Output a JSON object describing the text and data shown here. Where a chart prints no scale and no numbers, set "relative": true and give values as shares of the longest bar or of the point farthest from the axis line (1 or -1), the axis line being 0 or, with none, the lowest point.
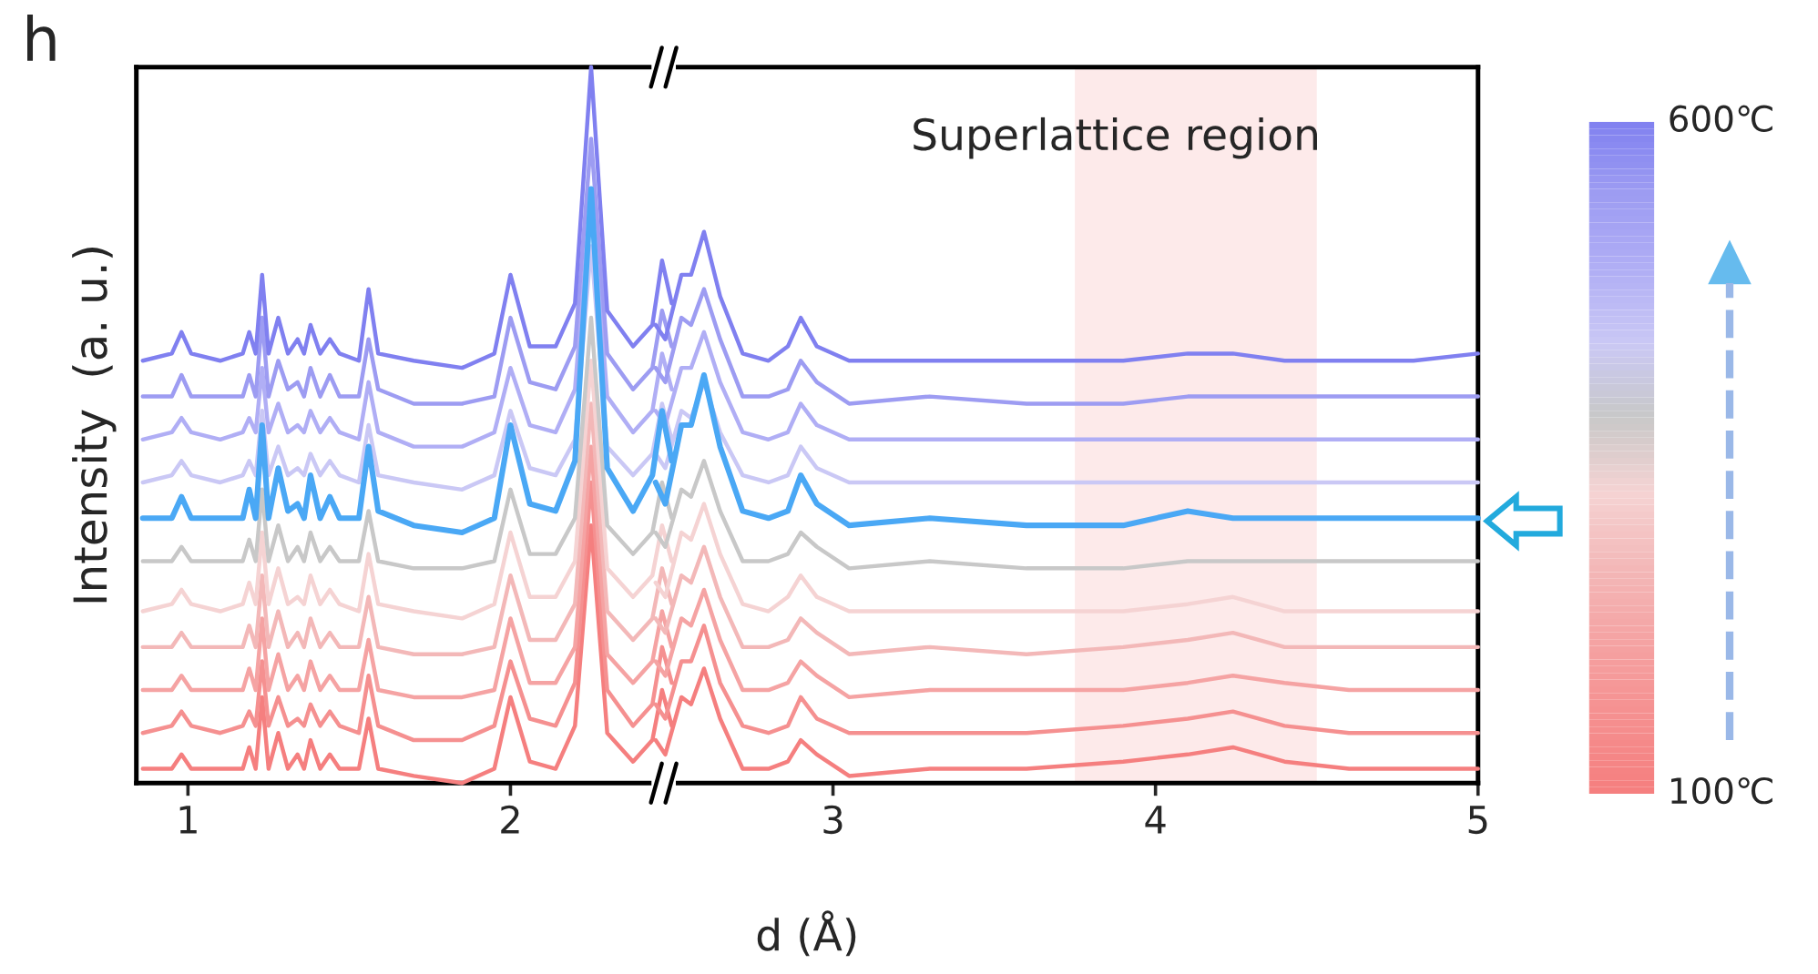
{
  "chart_data": {
    "type": "line",
    "title": "h",
    "xlabel": "d (Å)",
    "ylabel": "Intensity  (a. u.)",
    "relative": true,
    "tick_labels": "x",
    "grid": false,
    "legend": false,
    "line_style": "solid",
    "marker": "none",
    "xlim": [
      0.84,
      5.0
    ],
    "xticks": [
      1,
      2,
      3,
      4,
      5
    ],
    "annotations": [
      "Superlattice region"
    ],
    "bands": [
      {
        "axis": "x",
        "from": 3.75,
        "to": 4.5,
        "color": "#fdeaea"
      }
    ],
    "clim": [
      100,
      600
    ],
    "cticks": [
      {
        "value": 100,
        "label": "100℃"
      },
      {
        "value": 600,
        "label": "600℃"
      }
    ],
    "x": [
      0.86,
      0.95,
      0.98,
      1.01,
      1.1,
      1.17,
      1.19,
      1.21,
      1.23,
      1.25,
      1.28,
      1.31,
      1.34,
      1.36,
      1.38,
      1.41,
      1.44,
      1.47,
      1.53,
      1.56,
      1.59,
      1.7,
      1.85,
      1.95,
      2.0,
      2.06,
      2.14,
      2.2,
      2.25,
      2.3,
      2.38,
      2.44,
      2.47,
      2.5,
      2.45,
      2.48,
      2.53,
      2.56,
      2.6,
      2.65,
      2.72,
      2.8,
      2.86,
      2.9,
      2.95,
      3.05,
      3.3,
      3.6,
      3.9,
      4.1,
      4.24,
      4.4,
      4.6,
      4.8,
      5.0
    ],
    "series": [
      {
        "color": "#f57f7f",
        "values": [
          0.02,
          0.02,
          0.04,
          0.02,
          0.02,
          0.02,
          0.05,
          0.02,
          0.12,
          0.02,
          0.07,
          0.02,
          0.04,
          0.02,
          0.06,
          0.02,
          0.04,
          0.02,
          0.02,
          0.09,
          0.02,
          0.01,
          0.0,
          0.02,
          0.12,
          0.03,
          0.02,
          0.08,
          0.36,
          0.07,
          0.03,
          0.06,
          0.13,
          0.08,
          0.06,
          0.04,
          0.12,
          0.11,
          0.16,
          0.09,
          0.02,
          0.02,
          0.03,
          0.06,
          0.04,
          0.01,
          0.02,
          0.02,
          0.03,
          0.04,
          0.05,
          0.03,
          0.02,
          0.02,
          0.02
        ]
      },
      {
        "color": "#f59090",
        "values": [
          0.07,
          0.08,
          0.1,
          0.08,
          0.07,
          0.08,
          0.1,
          0.08,
          0.17,
          0.08,
          0.12,
          0.08,
          0.09,
          0.08,
          0.11,
          0.08,
          0.1,
          0.08,
          0.07,
          0.15,
          0.08,
          0.06,
          0.06,
          0.08,
          0.17,
          0.09,
          0.08,
          0.14,
          0.42,
          0.13,
          0.08,
          0.11,
          0.19,
          0.14,
          0.11,
          0.09,
          0.17,
          0.17,
          0.22,
          0.14,
          0.08,
          0.07,
          0.08,
          0.12,
          0.09,
          0.07,
          0.07,
          0.07,
          0.08,
          0.09,
          0.1,
          0.08,
          0.07,
          0.07,
          0.07
        ]
      },
      {
        "color": "#f5a3a3",
        "values": [
          0.13,
          0.13,
          0.15,
          0.13,
          0.13,
          0.13,
          0.16,
          0.13,
          0.23,
          0.13,
          0.18,
          0.13,
          0.15,
          0.13,
          0.17,
          0.13,
          0.15,
          0.13,
          0.13,
          0.2,
          0.13,
          0.12,
          0.12,
          0.13,
          0.23,
          0.14,
          0.14,
          0.19,
          0.47,
          0.18,
          0.14,
          0.17,
          0.24,
          0.19,
          0.17,
          0.15,
          0.23,
          0.22,
          0.27,
          0.2,
          0.13,
          0.13,
          0.14,
          0.17,
          0.15,
          0.12,
          0.13,
          0.13,
          0.13,
          0.14,
          0.15,
          0.14,
          0.13,
          0.13,
          0.13
        ]
      },
      {
        "color": "#f3b8b8",
        "values": [
          0.19,
          0.19,
          0.21,
          0.19,
          0.19,
          0.19,
          0.22,
          0.19,
          0.29,
          0.19,
          0.24,
          0.19,
          0.21,
          0.19,
          0.23,
          0.19,
          0.21,
          0.19,
          0.19,
          0.26,
          0.19,
          0.18,
          0.18,
          0.19,
          0.29,
          0.2,
          0.2,
          0.25,
          0.53,
          0.24,
          0.2,
          0.23,
          0.3,
          0.25,
          0.23,
          0.21,
          0.29,
          0.28,
          0.33,
          0.26,
          0.19,
          0.19,
          0.2,
          0.23,
          0.21,
          0.18,
          0.19,
          0.18,
          0.19,
          0.2,
          0.21,
          0.19,
          0.19,
          0.19,
          0.19
        ]
      },
      {
        "color": "#f5d3d3",
        "values": [
          0.24,
          0.25,
          0.27,
          0.25,
          0.24,
          0.25,
          0.28,
          0.25,
          0.35,
          0.25,
          0.3,
          0.25,
          0.26,
          0.25,
          0.29,
          0.25,
          0.27,
          0.25,
          0.24,
          0.32,
          0.25,
          0.24,
          0.23,
          0.25,
          0.35,
          0.26,
          0.26,
          0.31,
          0.59,
          0.3,
          0.26,
          0.29,
          0.36,
          0.31,
          0.28,
          0.26,
          0.35,
          0.34,
          0.39,
          0.32,
          0.25,
          0.24,
          0.26,
          0.29,
          0.26,
          0.24,
          0.24,
          0.24,
          0.24,
          0.25,
          0.26,
          0.24,
          0.24,
          0.24,
          0.24
        ]
      },
      {
        "color": "#c8c8c8",
        "values": [
          0.31,
          0.31,
          0.33,
          0.31,
          0.31,
          0.31,
          0.34,
          0.31,
          0.41,
          0.31,
          0.36,
          0.31,
          0.33,
          0.31,
          0.35,
          0.31,
          0.33,
          0.31,
          0.31,
          0.38,
          0.31,
          0.3,
          0.3,
          0.31,
          0.41,
          0.32,
          0.32,
          0.37,
          0.65,
          0.36,
          0.32,
          0.35,
          0.42,
          0.37,
          0.35,
          0.33,
          0.41,
          0.4,
          0.45,
          0.38,
          0.31,
          0.31,
          0.32,
          0.35,
          0.33,
          0.3,
          0.31,
          0.3,
          0.3,
          0.31,
          0.31,
          0.31,
          0.31,
          0.31,
          0.31
        ]
      },
      {
        "color": "#cac8f5",
        "values": [
          0.42,
          0.43,
          0.45,
          0.43,
          0.42,
          0.43,
          0.45,
          0.43,
          0.52,
          0.43,
          0.47,
          0.43,
          0.44,
          0.43,
          0.46,
          0.43,
          0.45,
          0.43,
          0.42,
          0.5,
          0.43,
          0.42,
          0.41,
          0.43,
          0.52,
          0.44,
          0.43,
          0.48,
          0.75,
          0.47,
          0.43,
          0.46,
          0.53,
          0.48,
          0.46,
          0.44,
          0.52,
          0.51,
          0.56,
          0.49,
          0.43,
          0.42,
          0.43,
          0.47,
          0.44,
          0.42,
          0.42,
          0.42,
          0.42,
          0.42,
          0.42,
          0.42,
          0.42,
          0.42,
          0.42
        ]
      },
      {
        "color": "#b0aef5",
        "values": [
          0.48,
          0.49,
          0.51,
          0.49,
          0.48,
          0.49,
          0.51,
          0.49,
          0.58,
          0.49,
          0.53,
          0.49,
          0.5,
          0.49,
          0.52,
          0.49,
          0.51,
          0.49,
          0.48,
          0.56,
          0.49,
          0.47,
          0.47,
          0.49,
          0.58,
          0.5,
          0.49,
          0.55,
          0.83,
          0.54,
          0.49,
          0.52,
          0.6,
          0.55,
          0.52,
          0.5,
          0.58,
          0.58,
          0.63,
          0.56,
          0.49,
          0.48,
          0.49,
          0.53,
          0.5,
          0.48,
          0.48,
          0.48,
          0.48,
          0.48,
          0.48,
          0.48,
          0.48,
          0.48,
          0.48
        ]
      },
      {
        "color": "#9d9cf2",
        "values": [
          0.54,
          0.54,
          0.57,
          0.54,
          0.54,
          0.54,
          0.57,
          0.54,
          0.65,
          0.54,
          0.59,
          0.55,
          0.56,
          0.54,
          0.58,
          0.54,
          0.57,
          0.54,
          0.54,
          0.62,
          0.55,
          0.53,
          0.53,
          0.54,
          0.65,
          0.56,
          0.55,
          0.61,
          0.9,
          0.6,
          0.55,
          0.58,
          0.66,
          0.61,
          0.58,
          0.56,
          0.65,
          0.64,
          0.69,
          0.62,
          0.54,
          0.54,
          0.55,
          0.59,
          0.56,
          0.53,
          0.54,
          0.53,
          0.53,
          0.54,
          0.54,
          0.54,
          0.54,
          0.54,
          0.54
        ]
      },
      {
        "color": "#8080f0",
        "values": [
          0.59,
          0.6,
          0.63,
          0.6,
          0.59,
          0.6,
          0.63,
          0.6,
          0.71,
          0.6,
          0.65,
          0.6,
          0.62,
          0.6,
          0.64,
          0.6,
          0.62,
          0.6,
          0.59,
          0.69,
          0.6,
          0.59,
          0.58,
          0.6,
          0.71,
          0.61,
          0.61,
          0.67,
          1.0,
          0.66,
          0.61,
          0.64,
          0.73,
          0.67,
          0.64,
          0.62,
          0.71,
          0.71,
          0.77,
          0.68,
          0.6,
          0.59,
          0.61,
          0.65,
          0.61,
          0.59,
          0.59,
          0.59,
          0.59,
          0.6,
          0.6,
          0.59,
          0.59,
          0.59,
          0.6
        ]
      },
      {
        "color": "#4aa8f5",
        "values": [
          0.37,
          0.37,
          0.4,
          0.37,
          0.37,
          0.37,
          0.41,
          0.37,
          0.5,
          0.37,
          0.44,
          0.38,
          0.39,
          0.37,
          0.43,
          0.37,
          0.4,
          0.37,
          0.37,
          0.47,
          0.38,
          0.36,
          0.35,
          0.37,
          0.5,
          0.39,
          0.38,
          0.45,
          0.83,
          0.44,
          0.38,
          0.43,
          0.52,
          0.45,
          0.42,
          0.39,
          0.5,
          0.5,
          0.57,
          0.47,
          0.38,
          0.37,
          0.38,
          0.43,
          0.39,
          0.36,
          0.37,
          0.36,
          0.36,
          0.38,
          0.37,
          0.37,
          0.37,
          0.37,
          0.37
        ]
      }
    ]
  }
}
